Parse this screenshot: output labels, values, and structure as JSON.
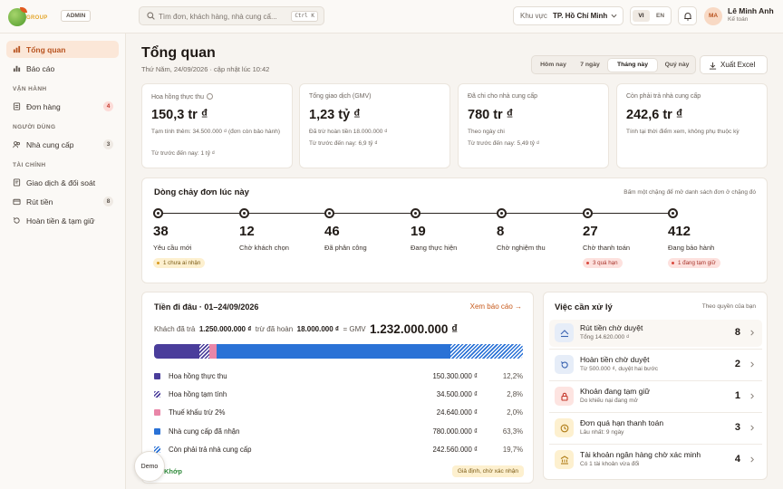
{
  "topbar": {
    "brand": "GROUP",
    "role_badge": "ADMIN",
    "search_placeholder": "Tìm đơn, khách hàng, nhà cung cấ...",
    "search_shortcut": "Ctrl K",
    "region_label": "Khu vực",
    "region_value": "TP. Hồ Chí Minh",
    "lang_active": "VI",
    "lang_other": "EN",
    "user_initials": "MA",
    "user_name": "Lê Minh Anh",
    "user_role": "Kế toán"
  },
  "sidebar": {
    "items": [
      {
        "label": "Tổng quan",
        "icon": "chart-icon"
      },
      {
        "label": "Báo cáo",
        "icon": "report-icon"
      }
    ],
    "sections": [
      {
        "title": "VẬN HÀNH",
        "items": [
          {
            "label": "Đơn hàng",
            "count": "4"
          }
        ]
      },
      {
        "title": "NGƯỜI DÙNG",
        "items": [
          {
            "label": "Nhà cung cấp",
            "count": "3"
          }
        ]
      },
      {
        "title": "TÀI CHÍNH",
        "items": [
          {
            "label": "Giao dịch & đối soát"
          },
          {
            "label": "Rút tiền",
            "count": "8"
          },
          {
            "label": "Hoàn tiền & tạm giữ"
          }
        ]
      }
    ]
  },
  "header": {
    "title": "Tổng quan",
    "subtitle": "Thứ Năm, 24/09/2026 · cập nhật lúc 10:42",
    "periods": [
      "Hôm nay",
      "7 ngày",
      "Tháng này",
      "Quý này"
    ],
    "active_period": "Tháng này",
    "export_label": "Xuất Excel"
  },
  "kpis": [
    {
      "label": "Hoa hồng thực thu",
      "value": "150,3 tr ₫",
      "note1": "Tạm tính thêm: 34.500.000 ₫ (đơn còn bảo hành)",
      "note2": "Từ trước đến nay: 1 tỷ ₫"
    },
    {
      "label": "Tổng giao dịch (GMV)",
      "value": "1,23 tỷ ₫",
      "note1": "Đã trừ hoàn tiền 18.000.000 ₫",
      "note2": "Từ trước đến nay: 6,9 tỷ ₫"
    },
    {
      "label": "Đã chi cho nhà cung cấp",
      "value": "780 tr ₫",
      "note1": "Theo ngày chi",
      "note2": "Từ trước đến nay: 5,49 tỷ ₫"
    },
    {
      "label": "Còn phải trả nhà cung cấp",
      "value": "242,6 tr ₫",
      "note1": "Tính tại thời điểm xem, không phụ thuộc kỳ",
      "note2": ""
    }
  ],
  "flow": {
    "title": "Dòng chảy đơn lúc này",
    "hint": "Bấm một chặng để mở danh sách đơn ở chặng đó",
    "stages": [
      {
        "count": "38",
        "label": "Yêu cầu mới",
        "tag": "1 chưa ai nhận",
        "tag_kind": "warn"
      },
      {
        "count": "12",
        "label": "Chờ khách chọn",
        "tag": "",
        "tag_kind": ""
      },
      {
        "count": "46",
        "label": "Đã phân công",
        "tag": "",
        "tag_kind": ""
      },
      {
        "count": "19",
        "label": "Đang thực hiện",
        "tag": "",
        "tag_kind": ""
      },
      {
        "count": "8",
        "label": "Chờ nghiệm thu",
        "tag": "",
        "tag_kind": ""
      },
      {
        "count": "27",
        "label": "Chờ thanh toán",
        "tag": "3 quá hạn",
        "tag_kind": "bad"
      },
      {
        "count": "412",
        "label": "Đang bảo hành",
        "tag": "1 đang tạm giữ",
        "tag_kind": "bad"
      }
    ]
  },
  "money": {
    "title": "Tiền đi đâu · 01–24/09/2026",
    "link": "Xem báo cáo →",
    "paid_label": "Khách đã trả",
    "paid_value": "1.250.000.000 ₫",
    "refund_label": "trừ đã hoàn",
    "refund_value": "18.000.000 ₫",
    "gmv_label": "= GMV",
    "gmv_value": "1.232.000.000 ₫",
    "rows": [
      {
        "name": "Hoa hồng thực thu",
        "amount": "150.300.000 ₫",
        "pct": "12,2%",
        "share": 12.2,
        "color": "#4a3d9b",
        "hatch": false
      },
      {
        "name": "Hoa hồng tạm tính",
        "amount": "34.500.000 ₫",
        "pct": "2,8%",
        "share": 2.8,
        "color": "#4a3d9b",
        "hatch": true
      },
      {
        "name": "Thuế khấu trừ 2%",
        "amount": "24.640.000 ₫",
        "pct": "2,0%",
        "share": 2.0,
        "color": "#e986a8",
        "hatch": false
      },
      {
        "name": "Nhà cung cấp đã nhận",
        "amount": "780.000.000 ₫",
        "pct": "63,3%",
        "share": 63.3,
        "color": "#2a72d6",
        "hatch": false
      },
      {
        "name": "Còn phải trả nhà cung cấp",
        "amount": "242.560.000 ₫",
        "pct": "19,7%",
        "share": 19.7,
        "color": "#2a72d6",
        "hatch": true
      }
    ],
    "footer_left": "Khớp",
    "footer_tag": "Giả định, chờ xác nhận"
  },
  "demo_label": "Demo",
  "tasks": {
    "title": "Việc cần xử lý",
    "hint": "Theo quyền của bạn",
    "items": [
      {
        "title": "Rút tiền chờ duyệt",
        "sub": "Tổng 14.620.000 ₫",
        "count": "8",
        "icon": "withdraw-icon",
        "bg": "#e6edf8",
        "fg": "#3a63b0"
      },
      {
        "title": "Hoàn tiền chờ duyệt",
        "sub": "Từ 500.000 ₫, duyệt hai bước",
        "count": "2",
        "icon": "refund-icon",
        "bg": "#e6edf8",
        "fg": "#3a63b0"
      },
      {
        "title": "Khoản đang tạm giữ",
        "sub": "Do khiếu nại đang mở",
        "count": "1",
        "icon": "lock-icon",
        "bg": "#fde4e1",
        "fg": "#c4372b"
      },
      {
        "title": "Đơn quá hạn thanh toán",
        "sub": "Lâu nhất: 9 ngày",
        "count": "3",
        "icon": "clock-icon",
        "bg": "#fdf0cf",
        "fg": "#b07d17"
      },
      {
        "title": "Tài khoản ngân hàng chờ xác minh",
        "sub": "Có 1 tài khoản vừa đổi",
        "count": "4",
        "icon": "bank-icon",
        "bg": "#fdf0cf",
        "fg": "#b07d17"
      }
    ]
  }
}
